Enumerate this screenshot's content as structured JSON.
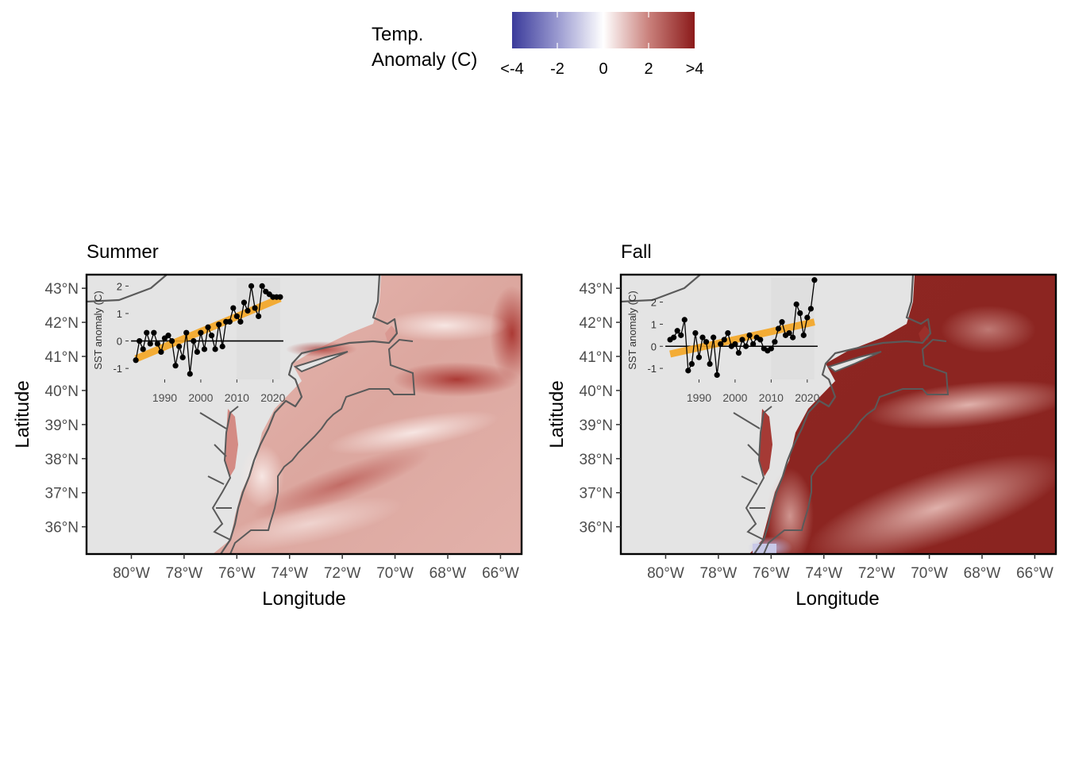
{
  "legend": {
    "title_line1": "Temp.",
    "title_line2": "Anomaly (C)",
    "ticks": [
      "<-4",
      "-2",
      "0",
      "2",
      ">4"
    ],
    "tick_values": [
      -4,
      -2,
      0,
      2,
      4
    ],
    "colors": {
      "low": "#3b3b9b",
      "mid": "#ffffff",
      "high": "#8b1a1a"
    }
  },
  "axis_labels": {
    "x": "Longitude",
    "y": "Latitude"
  },
  "lon_ticks": [
    "80°W",
    "78°W",
    "76°W",
    "74°W",
    "72°W",
    "70°W",
    "68°W",
    "66°W"
  ],
  "lon_values": [
    -80,
    -78,
    -76,
    -74,
    -72,
    -70,
    -68,
    -66
  ],
  "lat_ticks": [
    "43°N",
    "42°N",
    "41°N",
    "40°N",
    "39°N",
    "38°N",
    "37°N",
    "36°N"
  ],
  "lat_values": [
    43,
    42,
    41,
    40,
    39,
    38,
    37,
    36
  ],
  "extent": {
    "lon": [
      -81.7,
      -65.2
    ],
    "lat": [
      35.2,
      43.4
    ]
  },
  "colors": {
    "land": "#e4e4e4",
    "coast": "#5a5a5a",
    "trend": "#f5a623",
    "grid_box": "#d8d8d8"
  },
  "panels": [
    {
      "title": "Summer",
      "inset": {
        "ylabel": "SST anomaly (C)",
        "x_ticks": [
          "1990",
          "2000",
          "2010",
          "2020"
        ],
        "y_ticks": [
          "-1",
          "0",
          "1",
          "2"
        ],
        "ylim": [
          -1.4,
          2.3
        ]
      }
    },
    {
      "title": "Fall",
      "inset": {
        "ylabel": "SST anomaly (C)",
        "x_ticks": [
          "1990",
          "2000",
          "2010",
          "2020"
        ],
        "y_ticks": [
          "-1",
          "0",
          "1",
          "2"
        ],
        "ylim": [
          -1.5,
          3.1
        ]
      }
    }
  ],
  "chart_data": [
    {
      "type": "line",
      "title": "Summer",
      "xlabel": "",
      "ylabel": "SST anomaly (C)",
      "x": [
        1982,
        1983,
        1984,
        1985,
        1986,
        1987,
        1988,
        1989,
        1990,
        1991,
        1992,
        1993,
        1994,
        1995,
        1996,
        1997,
        1998,
        1999,
        2000,
        2001,
        2002,
        2003,
        2004,
        2005,
        2006,
        2007,
        2008,
        2009,
        2010,
        2011,
        2012,
        2013,
        2014,
        2015,
        2016,
        2017,
        2018,
        2019,
        2020,
        2021,
        2022
      ],
      "series": [
        {
          "values": [
            -0.7,
            0.0,
            -0.3,
            0.3,
            -0.1,
            0.3,
            -0.1,
            -0.4,
            0.1,
            0.2,
            0.0,
            -0.9,
            -0.2,
            -0.6,
            0.3,
            -1.2,
            0.0,
            -0.4,
            0.3,
            -0.3,
            0.5,
            0.2,
            -0.3,
            0.6,
            -0.2,
            0.7,
            0.7,
            1.2,
            0.9,
            0.7,
            1.4,
            1.1,
            2.0,
            1.2,
            0.9,
            2.0,
            1.8,
            1.7,
            1.6,
            1.6,
            1.6
          ]
        }
      ],
      "trend": {
        "start": [
          1982,
          -0.65
        ],
        "end": [
          2022,
          1.55
        ]
      },
      "reference_line": 0,
      "shaded_period": [
        2010,
        2022
      ],
      "ylim": [
        -1.4,
        2.3
      ],
      "xlim": [
        1980,
        2024
      ]
    },
    {
      "type": "line",
      "title": "Fall",
      "xlabel": "",
      "ylabel": "SST anomaly (C)",
      "x": [
        1982,
        1983,
        1984,
        1985,
        1986,
        1987,
        1988,
        1989,
        1990,
        1991,
        1992,
        1993,
        1994,
        1995,
        1996,
        1997,
        1998,
        1999,
        2000,
        2001,
        2002,
        2003,
        2004,
        2005,
        2006,
        2007,
        2008,
        2009,
        2010,
        2011,
        2012,
        2013,
        2014,
        2015,
        2016,
        2017,
        2018,
        2019,
        2020,
        2021,
        2022
      ],
      "series": [
        {
          "values": [
            0.3,
            0.4,
            0.7,
            0.5,
            1.2,
            -1.1,
            -0.8,
            0.6,
            -0.5,
            0.4,
            0.2,
            -0.8,
            0.4,
            -1.3,
            0.1,
            0.3,
            0.6,
            0.0,
            0.1,
            -0.3,
            0.3,
            0.0,
            0.5,
            0.1,
            0.4,
            0.3,
            -0.1,
            -0.2,
            -0.1,
            0.2,
            0.8,
            1.1,
            0.5,
            0.6,
            0.4,
            1.9,
            1.5,
            0.5,
            1.3,
            1.7,
            3.0
          ]
        }
      ],
      "trend": {
        "start": [
          1982,
          -0.35
        ],
        "end": [
          2022,
          1.1
        ]
      },
      "reference_line": 0,
      "shaded_period": [
        2010,
        2022
      ],
      "ylim": [
        -1.5,
        3.1
      ],
      "xlim": [
        1980,
        2024
      ]
    }
  ]
}
